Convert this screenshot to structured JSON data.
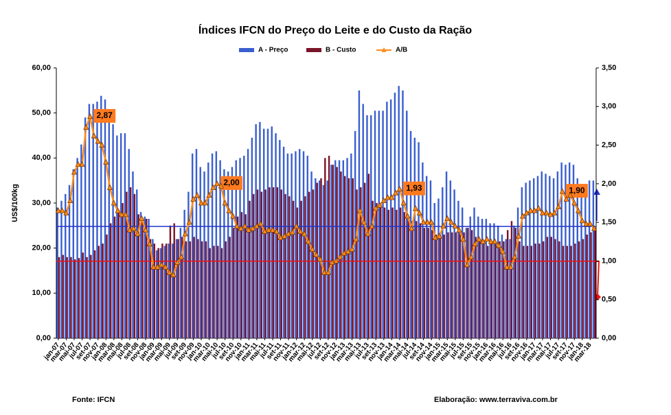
{
  "chart_data": {
    "type": "bar_line",
    "title": "Índices IFCN do Preço do Leite e do Custo da Ração",
    "y_label": "US$/100kg",
    "source": "Fonte: IFCN",
    "credit": "Elaboração: www.terraviva.com.br",
    "categories": [
      "jan-07",
      null,
      "mar-07",
      null,
      "mai-07",
      null,
      "jul-07",
      null,
      "set-07",
      null,
      "nov-07",
      null,
      "jan-08",
      null,
      "mar-08",
      null,
      "mai-08",
      null,
      "jul-08",
      null,
      "set-08",
      null,
      "nov-08",
      null,
      "jan-09",
      null,
      "mar-09",
      null,
      "mai-09",
      null,
      "jul-09",
      null,
      "set-09",
      null,
      "nov-09",
      null,
      "jan-10",
      null,
      "mar-10",
      null,
      "mai-10",
      null,
      "jul-10",
      null,
      "set-10",
      null,
      "nov-10",
      null,
      "jan-11",
      null,
      "mar-11",
      null,
      "mai-11",
      null,
      "jul-11",
      null,
      "set-11",
      null,
      "nov-11",
      null,
      "jan-12",
      null,
      "mar-12",
      null,
      "mai-12",
      null,
      "jul-12",
      null,
      "set-12",
      null,
      "nov-12",
      null,
      "jan-13",
      null,
      "mar-13",
      null,
      "mai-13",
      null,
      "jul-13",
      null,
      "set-13",
      null,
      "nov-13",
      null,
      "jan-14",
      null,
      "mar-14",
      null,
      "mai-14",
      null,
      "jul-14",
      null,
      "set-14",
      null,
      "nov-14",
      null,
      "jan-15",
      null,
      "mar-15",
      null,
      "mai-15",
      null,
      "jul-15",
      null,
      "set-15",
      null,
      "nov-15",
      null,
      "jan-16",
      null,
      "mar-16",
      null,
      "mai-16",
      null,
      "jul-16",
      null,
      "set-16",
      null,
      "nov-16",
      null,
      "jan-17",
      null,
      "mar-17",
      null,
      "mai-17",
      null,
      "jul-17",
      null,
      "set-17",
      null,
      "nov-17",
      null,
      "jan-18",
      null,
      "mar-18",
      null
    ],
    "series": [
      {
        "name": "A - Preço",
        "color": "#3a5fd0",
        "type": "bar",
        "values": [
          29,
          30.5,
          32,
          34,
          37.5,
          40,
          43,
          49,
          52,
          52,
          52.5,
          53.8,
          53,
          49.5,
          47.5,
          45,
          45.5,
          45.5,
          42,
          37,
          33,
          28,
          27,
          26.5,
          22,
          19.5,
          20,
          20.5,
          21,
          21,
          22,
          24.5,
          28.5,
          32.5,
          41,
          42,
          38,
          37,
          39,
          41,
          41.5,
          39.5,
          37.5,
          37,
          38,
          39.5,
          40,
          40.5,
          42,
          44.5,
          47.5,
          48,
          46.5,
          46.5,
          47,
          45.5,
          44,
          42.5,
          41,
          41,
          41.5,
          42,
          41.5,
          40.5,
          37,
          35.5,
          35,
          34,
          35,
          38.5,
          39.5,
          39.5,
          39.5,
          40,
          41,
          46,
          55,
          52,
          49.5,
          49.5,
          50.5,
          50.5,
          50.5,
          52.5,
          53,
          54.5,
          56,
          55,
          50.5,
          46,
          44.5,
          43.5,
          39,
          36,
          35,
          30,
          31,
          33.5,
          37,
          35,
          33,
          30.5,
          29,
          24.5,
          27,
          29,
          27,
          26.5,
          26.5,
          25.5,
          25.5,
          25,
          23,
          22,
          22,
          25,
          29,
          33.5,
          34.5,
          35,
          35.5,
          36,
          37,
          36.5,
          36,
          35.5,
          37,
          39,
          38.5,
          39,
          38.5,
          35.5,
          32,
          32,
          35,
          35
        ]
      },
      {
        "name": "B - Custo",
        "color": "#7a1428",
        "type": "bar",
        "values": [
          18,
          18.5,
          18,
          18,
          17.5,
          17.8,
          19,
          18,
          18.5,
          19.5,
          20.5,
          21,
          23,
          25.5,
          27,
          28.5,
          30,
          32.5,
          33.5,
          32,
          27.5,
          26,
          26.5,
          22,
          21,
          20,
          21,
          21,
          25,
          25.5,
          22,
          22.5,
          21.5,
          21.5,
          22.5,
          22,
          21.5,
          21.5,
          20,
          20.5,
          20.5,
          20,
          21.5,
          22.5,
          24.5,
          27,
          28,
          27.5,
          30.5,
          32,
          33,
          32.5,
          33,
          33.5,
          33.5,
          33.5,
          33,
          32,
          31.5,
          30.5,
          29,
          30.5,
          31.5,
          32.5,
          33,
          34.5,
          35.5,
          40,
          40.5,
          38.5,
          38,
          37,
          36,
          35.5,
          35.5,
          33,
          33.5,
          34.5,
          36.5,
          30.5,
          30,
          29.5,
          29,
          28.5,
          29,
          28.5,
          29,
          28,
          27,
          26,
          26,
          25.5,
          24.5,
          24.5,
          24,
          23,
          23,
          23,
          23.5,
          23.5,
          23.5,
          23.5,
          23.5,
          24.5,
          24,
          22.5,
          21.5,
          21,
          20.5,
          21,
          21,
          21.5,
          21.5,
          24,
          26,
          24.5,
          21.5,
          20.5,
          20.5,
          20.5,
          21,
          21,
          21.5,
          22.5,
          22.5,
          22,
          21.5,
          20.5,
          20.5,
          20.5,
          21,
          21.5,
          22,
          23,
          23.5,
          24
        ]
      },
      {
        "name": "A/B",
        "color": "#ff8c1a",
        "type": "line",
        "axis": "y2",
        "values": [
          1.65,
          1.65,
          1.62,
          1.78,
          2.15,
          2.25,
          2.25,
          2.73,
          2.87,
          2.62,
          2.55,
          2.5,
          2.28,
          1.95,
          1.75,
          1.65,
          1.6,
          1.6,
          1.4,
          1.42,
          1.35,
          1.55,
          1.4,
          1.22,
          0.92,
          0.92,
          0.95,
          0.92,
          0.85,
          0.82,
          0.98,
          1.05,
          1.35,
          1.5,
          1.8,
          1.85,
          1.75,
          1.75,
          1.85,
          1.95,
          2.0,
          1.97,
          1.75,
          1.65,
          1.58,
          1.45,
          1.42,
          1.45,
          1.4,
          1.42,
          1.45,
          1.48,
          1.38,
          1.4,
          1.4,
          1.38,
          1.3,
          1.32,
          1.35,
          1.37,
          1.45,
          1.38,
          1.35,
          1.25,
          1.15,
          1.08,
          1.02,
          0.85,
          0.85,
          0.98,
          1.0,
          1.05,
          1.1,
          1.12,
          1.15,
          1.28,
          1.65,
          1.5,
          1.35,
          1.45,
          1.68,
          1.72,
          1.78,
          1.82,
          1.82,
          1.88,
          1.93,
          1.75,
          1.58,
          1.42,
          1.68,
          1.62,
          1.5,
          1.5,
          1.5,
          1.3,
          1.32,
          1.45,
          1.55,
          1.5,
          1.45,
          1.4,
          1.28,
          0.95,
          1.05,
          1.22,
          1.28,
          1.25,
          1.28,
          1.25,
          1.25,
          1.2,
          1.12,
          0.92,
          0.92,
          1.05,
          1.32,
          1.58,
          1.62,
          1.65,
          1.65,
          1.68,
          1.62,
          1.62,
          1.6,
          1.62,
          1.7,
          1.9,
          1.8,
          1.85,
          1.75,
          1.65,
          1.52,
          1.48,
          1.48,
          1.42
        ],
        "value_labels": [
          null,
          null,
          null,
          null,
          null,
          null,
          null,
          null,
          "2,87",
          null,
          null,
          null,
          null,
          null,
          null,
          null,
          null,
          null,
          null,
          null,
          null,
          null,
          null,
          null,
          null,
          null,
          null,
          null,
          null,
          null,
          null,
          null,
          null,
          null,
          null,
          null,
          null,
          null,
          null,
          null,
          "2,00",
          null,
          null,
          null,
          null,
          null,
          null,
          null,
          null,
          null,
          null,
          null,
          null,
          null,
          null,
          null,
          null,
          null,
          null,
          null,
          null,
          null,
          null,
          null,
          null,
          null,
          null,
          null,
          null,
          null,
          null,
          null,
          null,
          null,
          null,
          null,
          null,
          null,
          null,
          null,
          null,
          null,
          null,
          null,
          null,
          null,
          "1,93",
          null,
          null,
          null,
          null,
          null,
          null,
          null,
          null,
          null,
          null,
          null,
          null,
          null,
          null,
          null,
          null,
          null,
          null,
          null,
          null,
          null,
          null,
          null,
          null,
          null,
          null,
          null,
          null,
          null,
          null,
          null,
          null,
          null,
          null,
          null,
          null,
          null,
          null,
          null,
          null,
          "1,90",
          null,
          null,
          null,
          null,
          null,
          null,
          null,
          null
        ]
      }
    ],
    "hlines": [
      {
        "value": 24.8,
        "color": "#2233cc"
      },
      {
        "value": 17.1,
        "color": "#ee1111"
      }
    ],
    "ylim": [
      0,
      60
    ],
    "yticks": [
      {
        "value": 0,
        "label": "0,00"
      },
      {
        "value": 10,
        "label": "10,00"
      },
      {
        "value": 20,
        "label": "20,00"
      },
      {
        "value": 30,
        "label": "30,00"
      },
      {
        "value": 40,
        "label": "40,00"
      },
      {
        "value": 50,
        "label": "50,00"
      },
      {
        "value": 60,
        "label": "60,00"
      }
    ],
    "y2lim": [
      0,
      3.5
    ],
    "y2ticks": [
      {
        "value": 0,
        "label": "0,00"
      },
      {
        "value": 0.5,
        "label": "0,50"
      },
      {
        "value": 1,
        "label": "1,00"
      },
      {
        "value": 1.5,
        "label": "1,50"
      },
      {
        "value": 2,
        "label": "2,00"
      },
      {
        "value": 2.5,
        "label": "2,50"
      },
      {
        "value": 3,
        "label": "3,00"
      },
      {
        "value": 3.5,
        "label": "3,50"
      }
    ],
    "grid": false,
    "legend": "top"
  }
}
